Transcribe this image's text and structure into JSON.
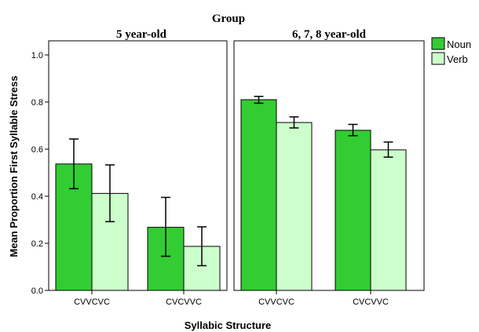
{
  "chart_data": {
    "type": "bar",
    "title": "Group",
    "xlabel": "Syllabic Structure",
    "ylabel": "Mean Proportion First Syllable Stress",
    "ylim": [
      0,
      1.0
    ],
    "yticks": [
      "0.0",
      "0.2",
      "0.4",
      "0.6",
      "0.8",
      "1.0"
    ],
    "yticks_values": [
      0,
      0.2,
      0.4,
      0.6,
      0.8,
      1.0
    ],
    "legend_position": "right",
    "legend": [
      {
        "name": "Noun",
        "color": "#33cc33"
      },
      {
        "name": "Verb",
        "color": "#ccffcc"
      }
    ],
    "panels": [
      {
        "title": "5 year-old",
        "categories": [
          "CVVCVC",
          "CVCVVC"
        ],
        "series": [
          {
            "name": "Noun",
            "values": [
              0.537,
              0.268
            ],
            "error_low": [
              0.432,
              0.145
            ],
            "error_high": [
              0.643,
              0.395
            ]
          },
          {
            "name": "Verb",
            "values": [
              0.412,
              0.187
            ],
            "error_low": [
              0.292,
              0.105
            ],
            "error_high": [
              0.533,
              0.27
            ]
          }
        ]
      },
      {
        "title": "6, 7, 8 year-old",
        "categories": [
          "CVVCVC",
          "CVCVVC"
        ],
        "series": [
          {
            "name": "Noun",
            "values": [
              0.81,
              0.68
            ],
            "error_low": [
              0.795,
              0.657
            ],
            "error_high": [
              0.824,
              0.705
            ]
          },
          {
            "name": "Verb",
            "values": [
              0.713,
              0.597
            ],
            "error_low": [
              0.69,
              0.566
            ],
            "error_high": [
              0.737,
              0.63
            ]
          }
        ]
      }
    ]
  }
}
